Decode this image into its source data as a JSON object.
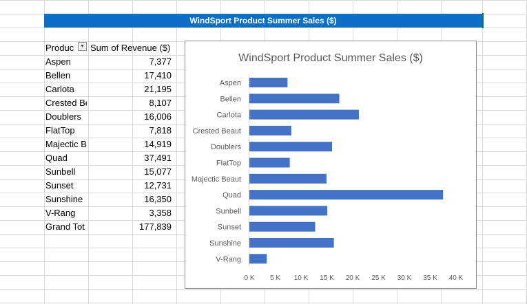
{
  "sheet": {
    "banner_title": "WindSport Product Summer Sales ($)",
    "pivot": {
      "col_label_header": "Produc",
      "col_value_header": "Sum of Revenue ($)",
      "rows": [
        {
          "label": "Aspen",
          "value": "7,377"
        },
        {
          "label": "Bellen",
          "value": "17,410"
        },
        {
          "label": "Carlota",
          "value": "21,195"
        },
        {
          "label": "Crested Be",
          "value": "8,107"
        },
        {
          "label": "Doublers",
          "value": "16,006"
        },
        {
          "label": "FlatTop",
          "value": "7,818"
        },
        {
          "label": "Majectic B",
          "value": "14,919"
        },
        {
          "label": "Quad",
          "value": "37,491"
        },
        {
          "label": "Sunbell",
          "value": "15,077"
        },
        {
          "label": "Sunset",
          "value": "12,731"
        },
        {
          "label": "Sunshine",
          "value": "16,350"
        },
        {
          "label": "V-Rang",
          "value": "3,358"
        },
        {
          "label": "Grand Tot",
          "value": "177,839"
        }
      ]
    }
  },
  "chart_data": {
    "type": "bar",
    "orientation": "horizontal",
    "title": "WindSport Product Summer Sales ($)",
    "categories": [
      "Aspen",
      "Bellen",
      "Carlota",
      "Crested Beaut",
      "Doublers",
      "FlatTop",
      "Majectic Beaut",
      "Quad",
      "Sunbell",
      "Sunset",
      "Sunshine",
      "V-Rang"
    ],
    "values": [
      7377,
      17410,
      21195,
      8107,
      16006,
      7818,
      14919,
      37491,
      15077,
      12731,
      16350,
      3358
    ],
    "xlim": [
      0,
      40000
    ],
    "ticks": [
      "0 K",
      "5 K",
      "10 K",
      "15 K",
      "20 K",
      "25 K",
      "30 K",
      "35 K",
      "40 K"
    ],
    "tick_values": [
      0,
      5000,
      10000,
      15000,
      20000,
      25000,
      30000,
      35000,
      40000
    ],
    "bar_color": "#4472c4",
    "gridlines": false,
    "legend": "none"
  },
  "colors": {
    "banner": "#0b6fc5",
    "gridline": "#d9d9d9",
    "bar": "#4472c4"
  }
}
